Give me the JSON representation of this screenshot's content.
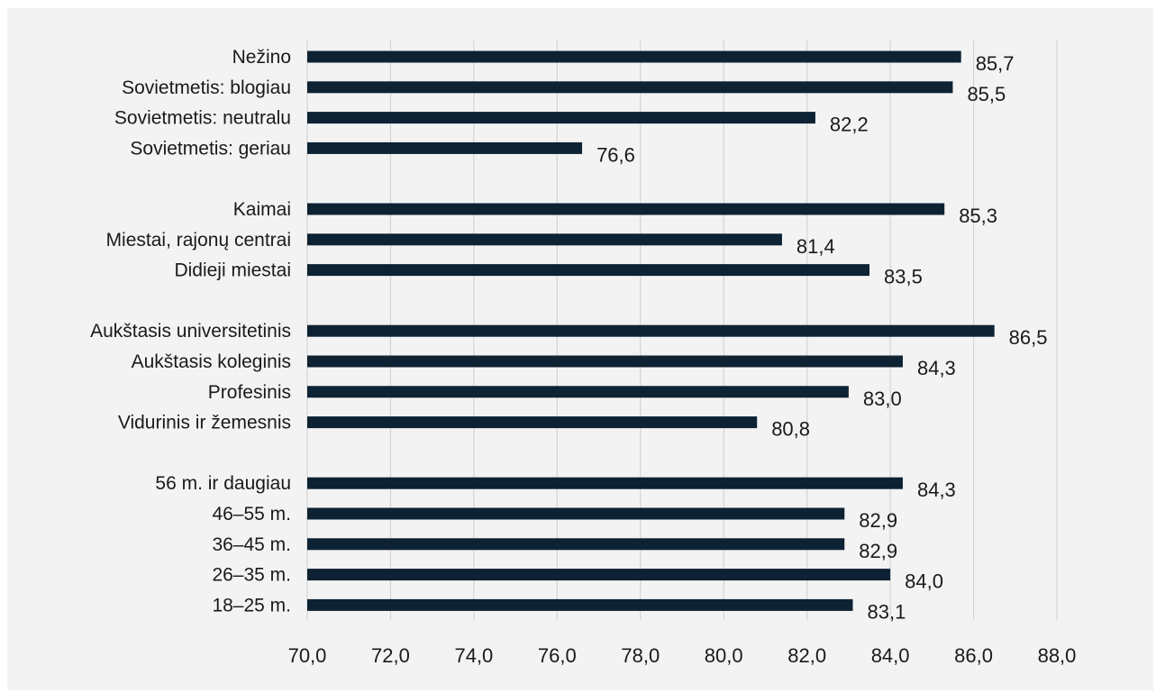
{
  "chart_data": {
    "type": "bar",
    "orientation": "horizontal",
    "categories": [
      "Nežino",
      "Sovietmetis: blogiau",
      "Sovietmetis: neutralu",
      "Sovietmetis: geriau",
      "",
      "Kaimai",
      "Miestai, rajonų centrai",
      "Didieji miestai",
      "",
      "Aukštasis universitetinis",
      "Aukštasis koleginis",
      "Profesinis",
      "Vidurinis ir žemesnis",
      "",
      "56 m. ir daugiau",
      "46–55 m.",
      "36–45 m.",
      "26–35 m.",
      "18–25 m."
    ],
    "values": [
      85.7,
      85.5,
      82.2,
      76.6,
      null,
      85.3,
      81.4,
      83.5,
      null,
      86.5,
      84.3,
      83.0,
      80.8,
      null,
      84.3,
      82.9,
      82.9,
      84.0,
      83.1
    ],
    "value_labels": [
      "85,7",
      "85,5",
      "82,2",
      "76,6",
      "",
      "85,3",
      "81,4",
      "83,5",
      "",
      "86,5",
      "84,3",
      "83,0",
      "80,8",
      "",
      "84,3",
      "82,9",
      "82,9",
      "84,0",
      "83,1"
    ],
    "xlim": [
      70,
      88
    ],
    "xticks": [
      70,
      72,
      74,
      76,
      78,
      80,
      82,
      84,
      86,
      88
    ],
    "xtick_labels": [
      "70,0",
      "72,0",
      "74,0",
      "76,0",
      "78,0",
      "80,0",
      "82,0",
      "84,0",
      "86,0",
      "88,0"
    ],
    "grid": "vertical",
    "bar_color": "#0d2233",
    "grid_color": "#d4d4d4",
    "background": "#f3f3f3"
  }
}
